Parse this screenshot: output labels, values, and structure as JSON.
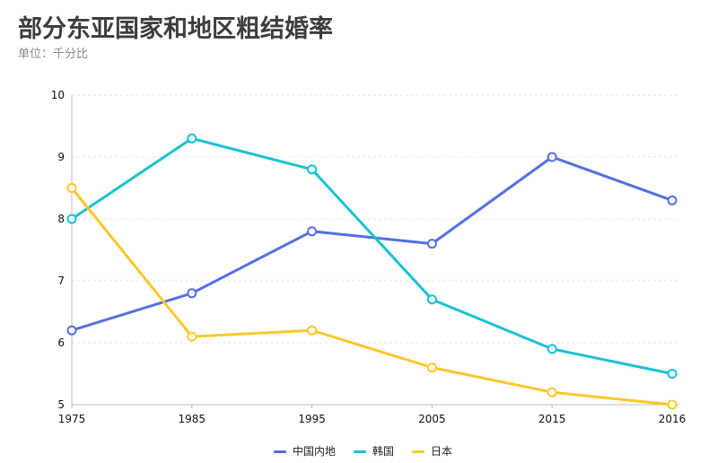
{
  "chart_data": {
    "type": "line",
    "title": "部分东亚国家和地区粗结婚率",
    "subtitle": "单位：千分比",
    "categories": [
      "1975",
      "1985",
      "1995",
      "2005",
      "2015",
      "2016"
    ],
    "series": [
      {
        "name": "中国内地",
        "color": "#5470e0",
        "values": [
          6.2,
          6.8,
          7.8,
          7.6,
          9.0,
          8.3
        ]
      },
      {
        "name": "韩国",
        "color": "#17c3d1",
        "values": [
          8.0,
          9.3,
          8.8,
          6.7,
          5.9,
          5.5
        ]
      },
      {
        "name": "日本",
        "color": "#fcc72b",
        "values": [
          8.5,
          6.1,
          6.2,
          5.6,
          5.2,
          5.0
        ]
      }
    ],
    "ylim": [
      5,
      10
    ],
    "yticks": [
      "5",
      "6",
      "7",
      "8",
      "9",
      "10"
    ],
    "grid": true,
    "legend_position": "bottom-center"
  }
}
